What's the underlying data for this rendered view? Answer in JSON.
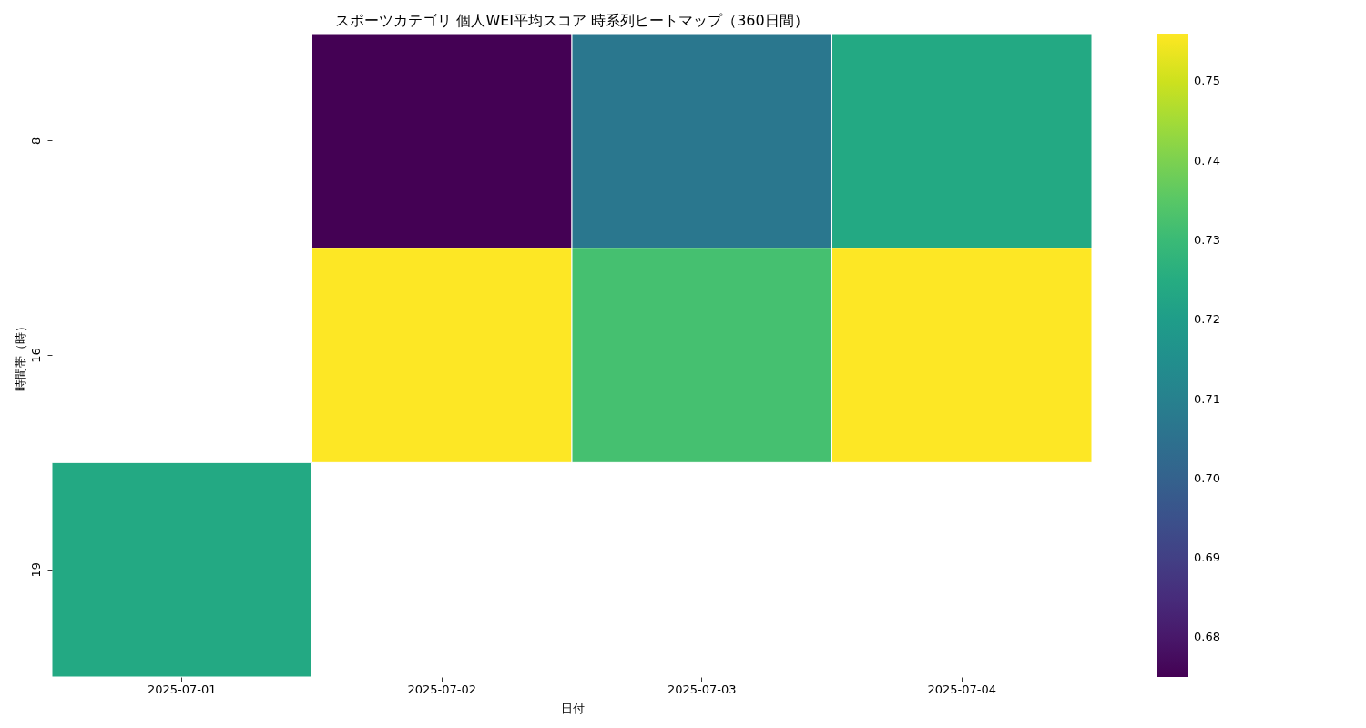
{
  "chart_data": {
    "type": "heatmap",
    "title": "スポーツカテゴリ 個人WEI平均スコア 時系列ヒートマップ（360日間）",
    "xlabel": "日付",
    "ylabel": "時間帯（時）",
    "categories": [
      "2025-07-01",
      "2025-07-02",
      "2025-07-03",
      "2025-07-04"
    ],
    "y_categories": [
      "8",
      "16",
      "19"
    ],
    "cells": [
      [
        null,
        0.675,
        0.707,
        0.724
      ],
      [
        null,
        0.756,
        0.732,
        0.756
      ],
      [
        0.724,
        null,
        null,
        null
      ]
    ],
    "clim": [
      0.675,
      0.756
    ],
    "cticks": [
      0.68,
      0.69,
      {
        "value": 0.7,
        "label": "0.70"
      },
      0.71,
      0.72,
      0.73,
      0.74,
      0.75
    ]
  }
}
